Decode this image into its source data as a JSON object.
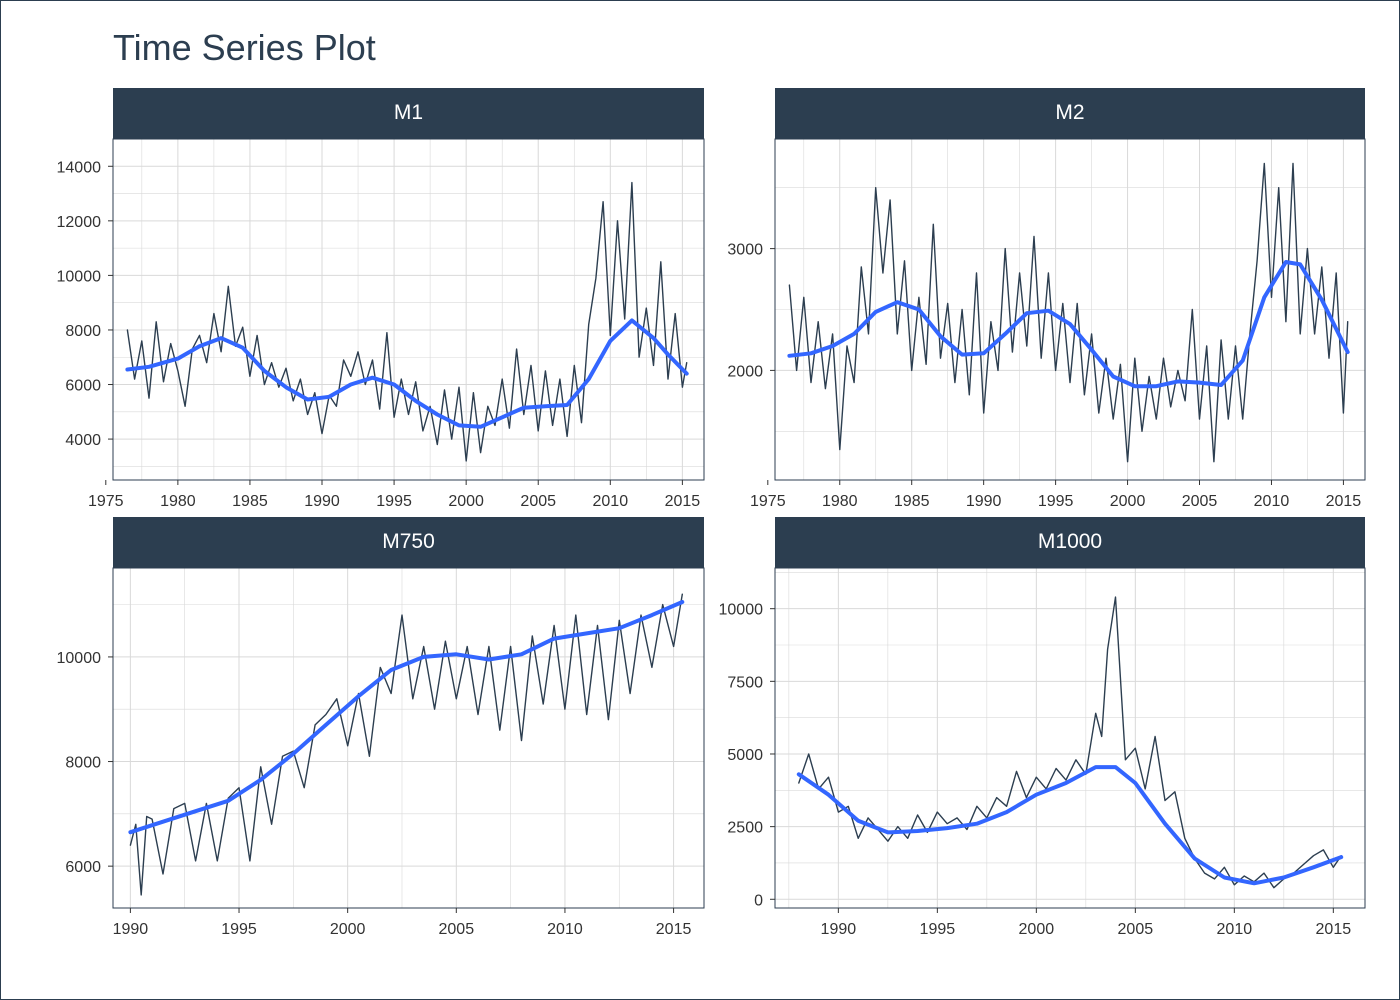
{
  "title": "Time Series Plot",
  "colors": {
    "header_bg": "#2c3e50",
    "series_line": "#2c3e50",
    "trend_line": "#3366ff",
    "grid": "#d9d9d9",
    "border": "#2c3e50"
  },
  "chart_data": [
    {
      "type": "line",
      "panel": "M1",
      "xlim": [
        1975.5,
        2016.5
      ],
      "ylim": [
        2500,
        15000
      ],
      "x_ticks": [
        1975,
        1980,
        1985,
        1990,
        1995,
        2000,
        2005,
        2010,
        2015
      ],
      "y_ticks": [
        4000,
        6000,
        8000,
        10000,
        12000,
        14000
      ],
      "series": [
        {
          "role": "observed",
          "x": [
            1976.5,
            1977,
            1977.5,
            1978,
            1978.5,
            1979,
            1979.5,
            1980,
            1980.5,
            1981,
            1981.5,
            1982,
            1982.5,
            1983,
            1983.5,
            1984,
            1984.5,
            1985,
            1985.5,
            1986,
            1986.5,
            1987,
            1987.5,
            1988,
            1988.5,
            1989,
            1989.5,
            1990,
            1990.5,
            1991,
            1991.5,
            1992,
            1992.5,
            1993,
            1993.5,
            1994,
            1994.5,
            1995,
            1995.5,
            1996,
            1996.5,
            1997,
            1997.5,
            1998,
            1998.5,
            1999,
            1999.5,
            2000,
            2000.5,
            2001,
            2001.5,
            2002,
            2002.5,
            2003,
            2003.5,
            2004,
            2004.5,
            2005,
            2005.5,
            2006,
            2006.5,
            2007,
            2007.5,
            2008,
            2008.5,
            2009,
            2009.5,
            2010,
            2010.5,
            2011,
            2011.5,
            2012,
            2012.5,
            2013,
            2013.5,
            2014,
            2014.5,
            2015,
            2015.3
          ],
          "y": [
            8000,
            6200,
            7600,
            5500,
            8300,
            6100,
            7500,
            6500,
            5200,
            7300,
            7800,
            6800,
            8600,
            7200,
            9600,
            7400,
            8100,
            6300,
            7800,
            6000,
            6800,
            5900,
            6600,
            5400,
            6200,
            4900,
            5700,
            4200,
            5600,
            5200,
            6900,
            6300,
            7200,
            6000,
            6900,
            5100,
            7900,
            4800,
            6200,
            4900,
            6100,
            4300,
            5200,
            3800,
            5800,
            4000,
            5900,
            3200,
            5700,
            3500,
            5200,
            4500,
            6200,
            4400,
            7300,
            4900,
            6700,
            4300,
            6500,
            4500,
            6200,
            4100,
            6700,
            4600,
            8200,
            9900,
            12700,
            7800,
            12000,
            8400,
            13400,
            7000,
            8800,
            6700,
            10500,
            6200,
            8600,
            5900,
            6800
          ]
        },
        {
          "role": "trend",
          "x": [
            1976.5,
            1978,
            1980,
            1981.5,
            1983,
            1984.5,
            1986,
            1987.5,
            1989,
            1990.5,
            1992,
            1993.5,
            1995,
            1996.5,
            1998,
            1999.5,
            2001,
            2002.5,
            2004,
            2005.5,
            2007,
            2008.5,
            2010,
            2011.5,
            2013,
            2014,
            2015.3
          ],
          "y": [
            6550,
            6650,
            6950,
            7400,
            7700,
            7350,
            6500,
            5900,
            5450,
            5550,
            6000,
            6250,
            6000,
            5400,
            4900,
            4500,
            4450,
            4800,
            5150,
            5200,
            5250,
            6200,
            7600,
            8350,
            7700,
            7100,
            6400
          ]
        }
      ]
    },
    {
      "type": "line",
      "panel": "M2",
      "xlim": [
        1975.5,
        2016.5
      ],
      "ylim": [
        1100,
        3900
      ],
      "x_ticks": [
        1975,
        1980,
        1985,
        1990,
        1995,
        2000,
        2005,
        2010,
        2015
      ],
      "y_ticks": [
        2000,
        3000
      ],
      "series": [
        {
          "role": "observed",
          "x": [
            1976.5,
            1977,
            1977.5,
            1978,
            1978.5,
            1979,
            1979.5,
            1980,
            1980.5,
            1981,
            1981.5,
            1982,
            1982.5,
            1983,
            1983.5,
            1984,
            1984.5,
            1985,
            1985.5,
            1986,
            1986.5,
            1987,
            1987.5,
            1988,
            1988.5,
            1989,
            1989.5,
            1990,
            1990.5,
            1991,
            1991.5,
            1992,
            1992.5,
            1993,
            1993.5,
            1994,
            1994.5,
            1995,
            1995.5,
            1996,
            1996.5,
            1997,
            1997.5,
            1998,
            1998.5,
            1999,
            1999.5,
            2000,
            2000.5,
            2001,
            2001.5,
            2002,
            2002.5,
            2003,
            2003.5,
            2004,
            2004.5,
            2005,
            2005.5,
            2006,
            2006.5,
            2007,
            2007.5,
            2008,
            2008.5,
            2009,
            2009.5,
            2010,
            2010.5,
            2011,
            2011.5,
            2012,
            2012.5,
            2013,
            2013.5,
            2014,
            2014.5,
            2015,
            2015.3
          ],
          "y": [
            2700,
            2000,
            2600,
            1900,
            2400,
            1850,
            2300,
            1350,
            2200,
            1900,
            2850,
            2300,
            3500,
            2800,
            3400,
            2300,
            2900,
            2000,
            2600,
            2050,
            3200,
            2100,
            2550,
            1900,
            2500,
            1800,
            2800,
            1650,
            2400,
            2000,
            3000,
            2150,
            2800,
            2200,
            3100,
            2100,
            2800,
            2000,
            2550,
            1900,
            2550,
            1800,
            2300,
            1650,
            2100,
            1600,
            2050,
            1250,
            2100,
            1500,
            1950,
            1600,
            2100,
            1700,
            2000,
            1750,
            2500,
            1600,
            2200,
            1250,
            2250,
            1600,
            2200,
            1600,
            2300,
            2900,
            3700,
            2600,
            3500,
            2400,
            3700,
            2300,
            3000,
            2300,
            2850,
            2100,
            2800,
            1650,
            2400
          ]
        },
        {
          "role": "trend",
          "x": [
            1976.5,
            1978,
            1979.5,
            1981,
            1982.5,
            1984,
            1985.5,
            1987,
            1988.5,
            1990,
            1991.5,
            1993,
            1994.5,
            1996,
            1997.5,
            1999,
            2000.5,
            2002,
            2003.5,
            2005,
            2006.5,
            2008,
            2009.5,
            2011,
            2012,
            2013.5,
            2015.3
          ],
          "y": [
            2120,
            2140,
            2200,
            2300,
            2480,
            2560,
            2500,
            2280,
            2130,
            2140,
            2300,
            2470,
            2490,
            2380,
            2170,
            1950,
            1870,
            1870,
            1910,
            1900,
            1880,
            2080,
            2600,
            2890,
            2870,
            2580,
            2150
          ]
        }
      ]
    },
    {
      "type": "line",
      "panel": "M750",
      "xlim": [
        1989.2,
        2016.4
      ],
      "ylim": [
        5200,
        11700
      ],
      "x_ticks": [
        1990,
        1995,
        2000,
        2005,
        2010,
        2015
      ],
      "y_ticks": [
        6000,
        8000,
        10000
      ],
      "series": [
        {
          "role": "observed",
          "x": [
            1990,
            1990.25,
            1990.5,
            1990.75,
            1991,
            1991.5,
            1992,
            1992.5,
            1993,
            1993.5,
            1994,
            1994.5,
            1995,
            1995.5,
            1996,
            1996.5,
            1997,
            1997.5,
            1998,
            1998.5,
            1999,
            1999.5,
            2000,
            2000.5,
            2001,
            2001.5,
            2002,
            2002.5,
            2003,
            2003.5,
            2004,
            2004.5,
            2005,
            2005.5,
            2006,
            2006.5,
            2007,
            2007.5,
            2008,
            2008.5,
            2009,
            2009.5,
            2010,
            2010.5,
            2011,
            2011.5,
            2012,
            2012.5,
            2013,
            2013.5,
            2014,
            2014.5,
            2015,
            2015.4
          ],
          "y": [
            6400,
            6800,
            5450,
            6950,
            6900,
            5850,
            7100,
            7200,
            6100,
            7200,
            6100,
            7300,
            7500,
            6100,
            7900,
            6800,
            8100,
            8200,
            7500,
            8700,
            8900,
            9200,
            8300,
            9300,
            8100,
            9800,
            9300,
            10800,
            9200,
            10200,
            9000,
            10300,
            9200,
            10200,
            8900,
            10200,
            8600,
            10200,
            8400,
            10400,
            9100,
            10600,
            9000,
            10800,
            8900,
            10600,
            8800,
            10700,
            9300,
            10800,
            9800,
            11000,
            10200,
            11200
          ]
        },
        {
          "role": "trend",
          "x": [
            1990,
            1991.5,
            1993,
            1994.5,
            1996,
            1997.5,
            1999,
            2000.5,
            2002,
            2003.5,
            2005,
            2006.5,
            2008,
            2009.5,
            2011,
            2012.5,
            2014,
            2015.4
          ],
          "y": [
            6650,
            6850,
            7050,
            7250,
            7650,
            8150,
            8700,
            9250,
            9750,
            10000,
            10050,
            9950,
            10050,
            10350,
            10450,
            10550,
            10800,
            11050
          ]
        }
      ]
    },
    {
      "type": "line",
      "panel": "M1000",
      "xlim": [
        1986.8,
        2016.6
      ],
      "ylim": [
        -300,
        11400
      ],
      "x_ticks": [
        1990,
        1995,
        2000,
        2005,
        2010,
        2015
      ],
      "y_ticks": [
        0,
        2500,
        5000,
        7500,
        10000
      ],
      "series": [
        {
          "role": "observed",
          "x": [
            1988,
            1988.5,
            1989,
            1989.5,
            1990,
            1990.5,
            1991,
            1991.5,
            1992,
            1992.5,
            1993,
            1993.5,
            1994,
            1994.5,
            1995,
            1995.5,
            1996,
            1996.5,
            1997,
            1997.5,
            1998,
            1998.5,
            1999,
            1999.5,
            2000,
            2000.5,
            2001,
            2001.5,
            2002,
            2002.5,
            2003,
            2003.3,
            2003.6,
            2004,
            2004.5,
            2005,
            2005.5,
            2006,
            2006.5,
            2007,
            2007.5,
            2008,
            2008.5,
            2009,
            2009.5,
            2010,
            2010.5,
            2011,
            2011.5,
            2012,
            2012.5,
            2013,
            2013.5,
            2014,
            2014.5,
            2015,
            2015.4
          ],
          "y": [
            4000,
            5000,
            3800,
            4200,
            3000,
            3200,
            2100,
            2800,
            2400,
            2000,
            2500,
            2100,
            2900,
            2300,
            3000,
            2600,
            2800,
            2400,
            3200,
            2800,
            3500,
            3200,
            4400,
            3500,
            4200,
            3800,
            4500,
            4100,
            4800,
            4300,
            6400,
            5600,
            8600,
            10400,
            4800,
            5200,
            3800,
            5600,
            3400,
            3700,
            2100,
            1400,
            900,
            700,
            1100,
            500,
            800,
            600,
            900,
            400,
            700,
            900,
            1200,
            1500,
            1700,
            1100,
            1500
          ]
        },
        {
          "role": "trend",
          "x": [
            1988,
            1989.5,
            1991,
            1992.5,
            1994,
            1995.5,
            1997,
            1998.5,
            2000,
            2001.5,
            2003,
            2004,
            2005,
            2006.5,
            2008,
            2009.5,
            2011,
            2012.5,
            2014,
            2015.4
          ],
          "y": [
            4300,
            3600,
            2700,
            2300,
            2350,
            2450,
            2600,
            3000,
            3600,
            4000,
            4550,
            4550,
            4000,
            2600,
            1400,
            750,
            550,
            750,
            1100,
            1450
          ]
        }
      ]
    }
  ]
}
